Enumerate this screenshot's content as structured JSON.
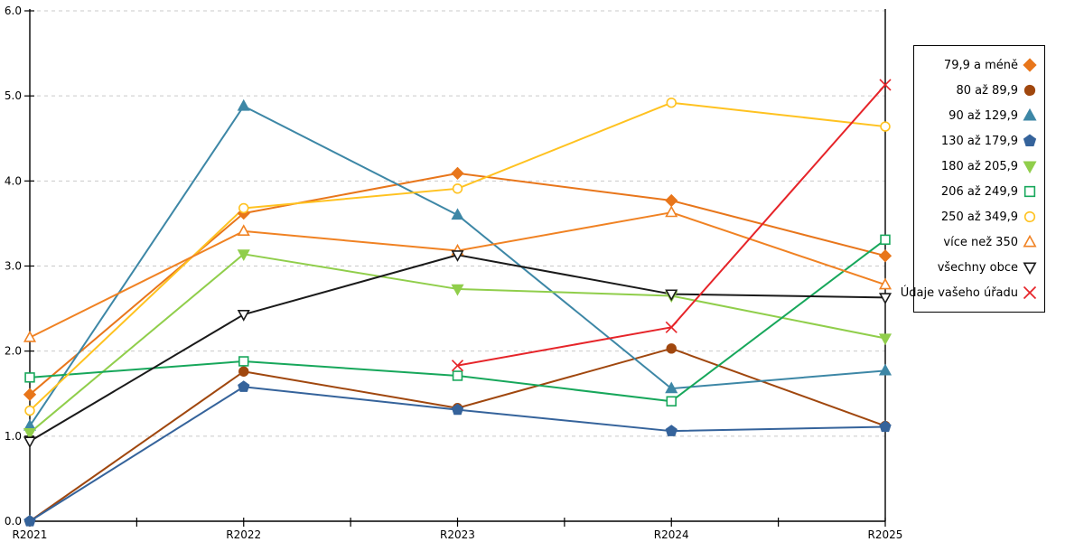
{
  "chart_data": {
    "type": "line",
    "title": "",
    "xlabel": "",
    "ylabel": "",
    "x_categories": [
      "R2021",
      "R2022",
      "R2023",
      "R2024",
      "R2025"
    ],
    "y_ticks": [
      "0.0",
      "1.0",
      "2.0",
      "3.0",
      "4.0",
      "5.0",
      "6.0"
    ],
    "ylim": [
      0,
      6
    ],
    "grid": "horizontal dashed gridlines at each 1.0",
    "legend_position": "right",
    "colors": {
      "gridline": "#c9c9c9",
      "axis": "#000000"
    },
    "series": [
      {
        "name": "79,9 a méně",
        "marker": "diamond",
        "fill": "solid",
        "color": "#E8761B",
        "values": [
          1.49,
          3.62,
          4.09,
          3.77,
          3.12
        ]
      },
      {
        "name": "80 až 89,9",
        "marker": "circle",
        "fill": "solid",
        "color": "#A0470E",
        "values": [
          0.0,
          1.76,
          1.33,
          2.03,
          1.12
        ]
      },
      {
        "name": "90 až 129,9",
        "marker": "triangle-up",
        "fill": "solid",
        "color": "#3D87A6",
        "values": [
          1.12,
          4.88,
          3.6,
          1.56,
          1.77
        ]
      },
      {
        "name": "130 až 179,9",
        "marker": "pentagon",
        "fill": "solid",
        "color": "#35639B",
        "values": [
          0.0,
          1.58,
          1.31,
          1.06,
          1.11
        ]
      },
      {
        "name": "180 až 205,9",
        "marker": "triangle-down",
        "fill": "solid",
        "color": "#90CE4B",
        "values": [
          1.04,
          3.14,
          2.73,
          2.65,
          2.15
        ]
      },
      {
        "name": "206 až 249,9",
        "marker": "square",
        "fill": "open",
        "color": "#17A75B",
        "values": [
          1.69,
          1.88,
          1.71,
          1.41,
          3.31
        ]
      },
      {
        "name": "250 až 349,9",
        "marker": "circle",
        "fill": "open",
        "color": "#FFC220",
        "values": [
          1.3,
          3.68,
          3.91,
          4.92,
          4.64
        ]
      },
      {
        "name": "více než 350",
        "marker": "triangle-up",
        "fill": "open",
        "color": "#F08223",
        "values": [
          2.16,
          3.41,
          3.18,
          3.63,
          2.78
        ]
      },
      {
        "name": "všechny obce",
        "marker": "triangle-down",
        "fill": "open",
        "color": "#1A1A1A",
        "values": [
          0.94,
          2.43,
          3.13,
          2.67,
          2.63
        ]
      },
      {
        "name": "Údaje vašeho úřadu",
        "marker": "x",
        "fill": "open",
        "color": "#E62429",
        "values": [
          null,
          null,
          1.83,
          2.28,
          5.13
        ]
      }
    ]
  }
}
